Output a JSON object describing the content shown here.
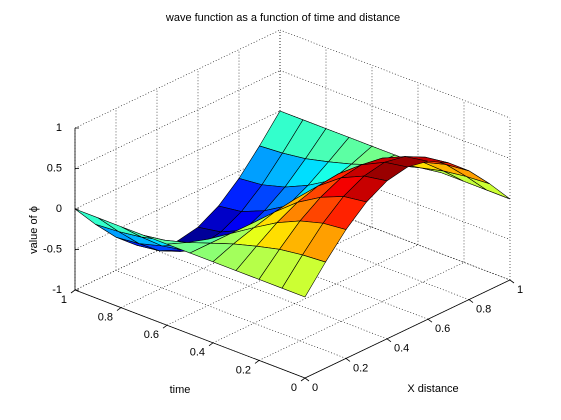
{
  "chart_data": {
    "type": "surface",
    "title": "wave function as a function of time and distance",
    "xlabel": "X distance",
    "ylabel": "time",
    "zlabel": "value of ϕ",
    "colormap": "jet",
    "grid": true,
    "x": [
      0,
      0.1,
      0.2,
      0.3,
      0.4,
      0.5,
      0.6,
      0.7,
      0.8,
      0.9,
      1
    ],
    "y": [
      0,
      0.1,
      0.2,
      0.3,
      0.4,
      0.5,
      0.6,
      0.7,
      0.8,
      0.9,
      1
    ],
    "z": [
      [
        0,
        0.31,
        0.59,
        0.81,
        0.95,
        1,
        0.95,
        0.81,
        0.59,
        0.31,
        0
      ],
      [
        0,
        0.29,
        0.56,
        0.77,
        0.9,
        0.95,
        0.9,
        0.77,
        0.56,
        0.29,
        0
      ],
      [
        0,
        0.25,
        0.48,
        0.65,
        0.77,
        0.81,
        0.77,
        0.65,
        0.48,
        0.25,
        0
      ],
      [
        0,
        0.18,
        0.35,
        0.48,
        0.56,
        0.59,
        0.56,
        0.48,
        0.35,
        0.18,
        0
      ],
      [
        0,
        0.1,
        0.18,
        0.25,
        0.29,
        0.31,
        0.29,
        0.25,
        0.18,
        0.1,
        0
      ],
      [
        0,
        0,
        0,
        0,
        0,
        0,
        0,
        0,
        0,
        0,
        0
      ],
      [
        0,
        -0.1,
        -0.18,
        -0.25,
        -0.29,
        -0.31,
        -0.29,
        -0.25,
        -0.18,
        -0.1,
        0
      ],
      [
        0,
        -0.18,
        -0.35,
        -0.48,
        -0.56,
        -0.59,
        -0.56,
        -0.48,
        -0.35,
        -0.18,
        0
      ],
      [
        0,
        -0.25,
        -0.48,
        -0.65,
        -0.77,
        -0.81,
        -0.77,
        -0.65,
        -0.48,
        -0.25,
        0
      ],
      [
        0,
        -0.29,
        -0.56,
        -0.77,
        -0.9,
        -0.95,
        -0.9,
        -0.77,
        -0.56,
        -0.29,
        0
      ],
      [
        0,
        -0.31,
        -0.59,
        -0.81,
        -0.95,
        -1,
        -0.95,
        -0.81,
        -0.59,
        -0.31,
        0
      ]
    ],
    "xlim": [
      0,
      1
    ],
    "xticks": [
      0,
      0.2,
      0.4,
      0.6,
      0.8,
      1
    ],
    "ylim": [
      0,
      1
    ],
    "yticks": [
      0,
      0.2,
      0.4,
      0.6,
      0.8,
      1
    ],
    "zlim": [
      -1,
      1
    ],
    "zticks": [
      -1,
      -0.5,
      0,
      0.5,
      1
    ]
  }
}
